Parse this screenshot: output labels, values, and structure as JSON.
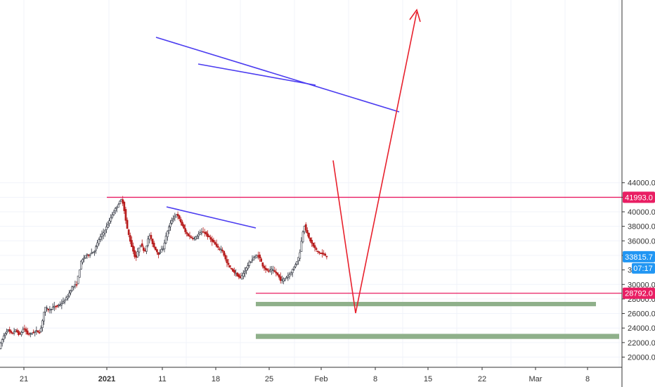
{
  "chart_data": {
    "type": "candlestick",
    "instrument": "BTCUSD",
    "y_axis": {
      "min": 19000,
      "max": 45000,
      "ticks": [
        20000,
        22000,
        24000,
        26000,
        28000,
        30000,
        32000,
        34000,
        36000,
        38000,
        40000,
        42000,
        44000
      ],
      "tick_labels": [
        "20000.0",
        "22000.0",
        "24000.0",
        "26000.0",
        "28000.0",
        "30000.0",
        "32000.0",
        "34000.0",
        "36000.0",
        "38000.0",
        "40000.0",
        "42000.0",
        "44000.0"
      ]
    },
    "x_axis": {
      "start_day": 0,
      "end_day": 113,
      "ticks": [
        {
          "day": 0,
          "label": "21"
        },
        {
          "day": 11,
          "label": "2021"
        },
        {
          "day": 21,
          "label": "11"
        },
        {
          "day": 28,
          "label": "18"
        },
        {
          "day": 35,
          "label": "25"
        },
        {
          "day": 42,
          "label": "Feb"
        },
        {
          "day": 49,
          "label": "8"
        },
        {
          "day": 56,
          "label": "15"
        },
        {
          "day": 63,
          "label": "22"
        },
        {
          "day": 70,
          "label": "Mar"
        },
        {
          "day": 77,
          "label": "8"
        }
      ]
    },
    "price_series": [
      [
        0.0,
        21300
      ],
      [
        0.9,
        22800
      ],
      [
        1.8,
        23800
      ],
      [
        2.7,
        23200
      ],
      [
        3.6,
        23700
      ],
      [
        4.5,
        23000
      ],
      [
        5.4,
        24000
      ],
      [
        6.3,
        23100
      ],
      [
        7.2,
        23300
      ],
      [
        8.1,
        23600
      ],
      [
        9.0,
        23400
      ],
      [
        10.0,
        26800
      ],
      [
        11.0,
        26500
      ],
      [
        12.0,
        26900
      ],
      [
        13.0,
        27100
      ],
      [
        14.0,
        27500
      ],
      [
        15.0,
        28300
      ],
      [
        16.0,
        29600
      ],
      [
        17.0,
        30000
      ],
      [
        18.0,
        33100
      ],
      [
        19.0,
        34000
      ],
      [
        20.0,
        34200
      ],
      [
        21.0,
        34700
      ],
      [
        22.0,
        36300
      ],
      [
        23.0,
        37200
      ],
      [
        24.0,
        38400
      ],
      [
        25.0,
        39800
      ],
      [
        26.0,
        40900
      ],
      [
        27.0,
        41800
      ],
      [
        27.5,
        40200
      ],
      [
        28.0,
        38000
      ],
      [
        29.0,
        35500
      ],
      [
        30.0,
        33500
      ],
      [
        31.0,
        35600
      ],
      [
        32.0,
        34500
      ],
      [
        33.0,
        36800
      ],
      [
        34.0,
        35200
      ],
      [
        35.0,
        34200
      ],
      [
        36.0,
        35000
      ],
      [
        37.0,
        37400
      ],
      [
        38.0,
        38900
      ],
      [
        39.0,
        39700
      ],
      [
        40.0,
        38500
      ],
      [
        41.0,
        37100
      ],
      [
        42.0,
        36500
      ],
      [
        43.0,
        36300
      ],
      [
        44.0,
        37000
      ],
      [
        45.0,
        37300
      ],
      [
        46.0,
        36500
      ],
      [
        47.0,
        35900
      ],
      [
        48.0,
        35000
      ],
      [
        49.0,
        34800
      ],
      [
        50.0,
        33000
      ],
      [
        51.0,
        32100
      ],
      [
        52.0,
        31500
      ],
      [
        53.0,
        30800
      ],
      [
        54.0,
        31900
      ],
      [
        55.0,
        33000
      ],
      [
        56.0,
        33700
      ],
      [
        57.0,
        34000
      ],
      [
        58.0,
        32500
      ],
      [
        59.0,
        31800
      ],
      [
        60.0,
        32000
      ],
      [
        61.0,
        31500
      ],
      [
        62.0,
        30500
      ],
      [
        63.0,
        30900
      ],
      [
        64.0,
        31500
      ],
      [
        65.0,
        32600
      ],
      [
        66.0,
        34000
      ],
      [
        66.5,
        36200
      ],
      [
        67.0,
        38300
      ],
      [
        68.0,
        36500
      ],
      [
        69.0,
        35300
      ],
      [
        70.0,
        34500
      ],
      [
        71.0,
        34200
      ],
      [
        72.0,
        33900
      ]
    ],
    "horizontal_levels": [
      {
        "value": 41993.0,
        "label": "41993.0",
        "color": "#e91e63"
      },
      {
        "value": 28792.0,
        "label": "28792.0",
        "color": "#e91e63"
      }
    ],
    "last_price": {
      "value": 33815.7,
      "label": "33815.7",
      "countdown": "07:17",
      "color": "#2196f3"
    },
    "trendlines": [
      {
        "from": [
          28.5,
          41993
        ],
        "to": [
          86.0,
          36900
        ],
        "color": "#4b3cf0"
      },
      {
        "from": [
          43.0,
          40100
        ],
        "to": [
          69.5,
          38700
        ],
        "color": "#4b3cf0"
      },
      {
        "from": [
          36.0,
          30400
        ],
        "to": [
          56.0,
          28792
        ],
        "color": "#4b3cf0"
      }
    ],
    "zones": [
      {
        "from_day": 56,
        "to_day": 100,
        "low": 27000,
        "high": 27600,
        "color": "#8fb08a"
      },
      {
        "from_day": 56,
        "to_day": 103,
        "low": 22500,
        "high": 23200,
        "color": "#8fb08a"
      }
    ],
    "projection": {
      "color": "#e8212d",
      "points": [
        [
          73.5,
          33600
        ],
        [
          79.5,
          23000
        ],
        [
          95.0,
          44000
        ]
      ]
    },
    "colors": {
      "up": "#26a69a",
      "down": "#ef5350",
      "grid": "#f0f3fa",
      "axis_line": "#333333"
    }
  }
}
